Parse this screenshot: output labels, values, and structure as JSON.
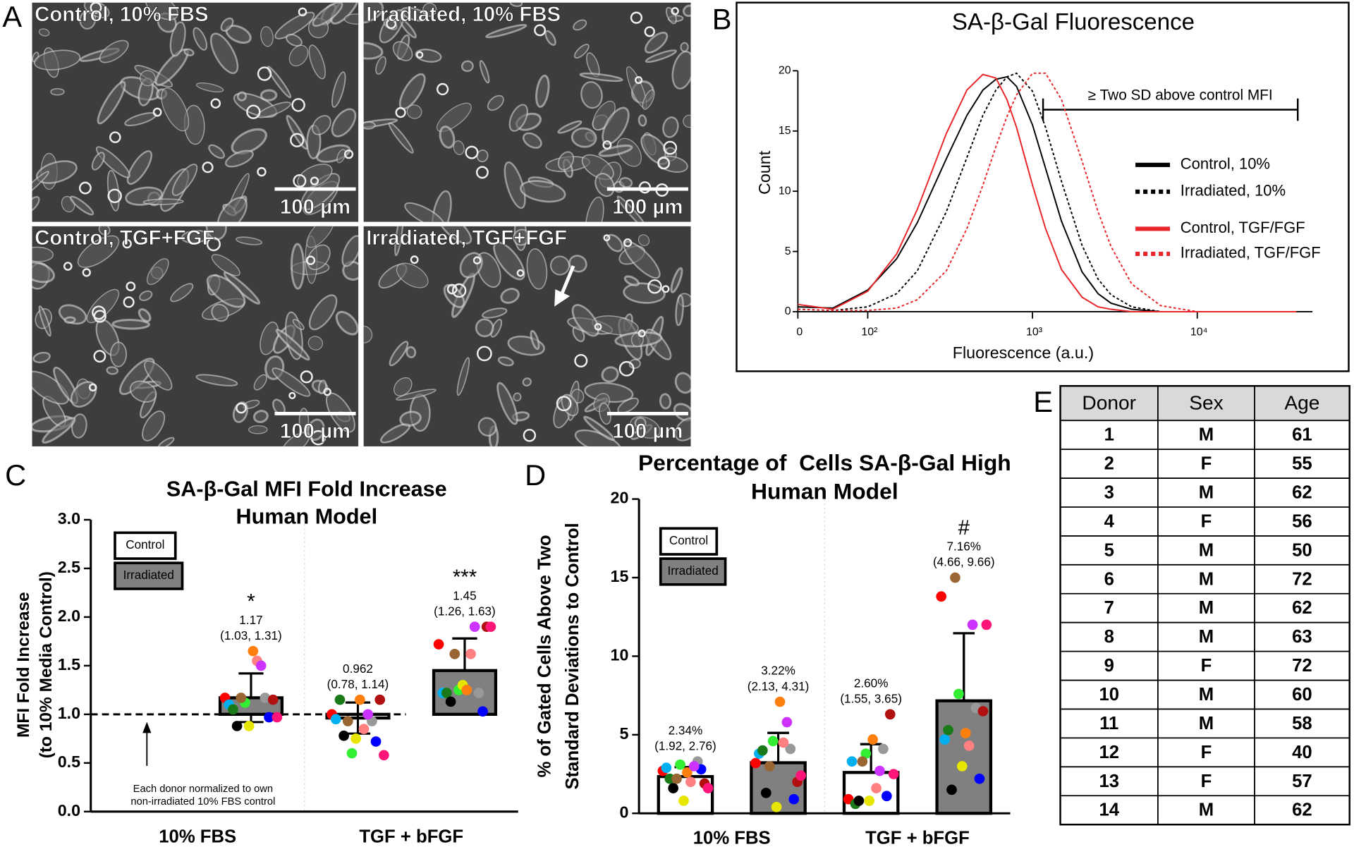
{
  "panel_labels": [
    "A",
    "B",
    "C",
    "D",
    "E"
  ],
  "micrographs": [
    {
      "label": "Control, 10% FBS",
      "scale_bar": "100 µm"
    },
    {
      "label": "Irradiated, 10% FBS",
      "scale_bar": "100 µm"
    },
    {
      "label": "Control, TGF+FGF",
      "scale_bar": "100 µm"
    },
    {
      "label": "Irradiated, TGF+FGF",
      "scale_bar": "100 µm"
    }
  ],
  "chart_data": [
    {
      "type": "line",
      "title": "SA-β-Gal Fluorescence",
      "xlabel": "Fluorescence (a.u.)",
      "ylabel": "Count",
      "xscale": "symlog",
      "linthresh": 100,
      "x": [
        0,
        50,
        100,
        150,
        200,
        300,
        400,
        500,
        600,
        700,
        800,
        1000,
        1200,
        1500,
        2000,
        2500,
        3000,
        4000,
        6000,
        10000,
        40000
      ],
      "xlim": [
        0,
        50000
      ],
      "xticks": [
        {
          "value": 0,
          "label": "0"
        },
        {
          "value": 100,
          "label": "10²"
        },
        {
          "value": 1000,
          "label": "10³"
        },
        {
          "value": 10000,
          "label": "10⁴"
        }
      ],
      "ylim": [
        0,
        20
      ],
      "yticks": [
        0,
        5,
        10,
        15,
        20
      ],
      "annotation": "≥ Two SD above control MFI",
      "series": [
        {
          "name": "Control, 10%",
          "color": "#000000",
          "linestyle": "solid",
          "values": [
            0.4,
            0.3,
            1.8,
            4.4,
            7.4,
            12.7,
            16.3,
            18.4,
            19.3,
            19.5,
            18.7,
            15.5,
            11.9,
            7.5,
            3.3,
            1.5,
            0.7,
            0.2,
            0,
            0,
            0
          ]
        },
        {
          "name": "Irradiated, 10%",
          "color": "#000000",
          "linestyle": "dotted",
          "values": [
            0.2,
            0.1,
            0.4,
            1.5,
            3.4,
            8.3,
            12.8,
            16.3,
            18.4,
            19.5,
            19.8,
            18.3,
            15.3,
            10.8,
            5.5,
            2.7,
            1.4,
            0.4,
            0,
            0,
            0
          ]
        },
        {
          "name": "Control, TGF/FGF",
          "color": "#e8262a",
          "linestyle": "solid",
          "values": [
            0.6,
            0.2,
            1.7,
            4.8,
            8.5,
            14.8,
            18.4,
            19.7,
            19.4,
            17.6,
            15.3,
            10.5,
            6.9,
            3.5,
            1.2,
            0.4,
            0.2,
            0,
            0,
            0,
            0
          ]
        },
        {
          "name": "Irradiated, TGF/FGF",
          "color": "#e8262a",
          "linestyle": "dotted",
          "values": [
            0.2,
            0.1,
            0.1,
            0.3,
            1.0,
            3.4,
            6.9,
            10.5,
            13.7,
            16.2,
            18.0,
            19.8,
            19.8,
            17.6,
            12.5,
            8.3,
            5.4,
            2.3,
            0.5,
            0,
            0
          ]
        }
      ]
    },
    {
      "type": "bar",
      "title": [
        "SA-β-Gal MFI Fold Increase",
        "Human Model"
      ],
      "ylabel": [
        "MFI Fold Increase",
        "(to 10% Media Control)"
      ],
      "categories": [
        "10% FBS",
        "TGF + bFGF"
      ],
      "ylim": [
        0,
        3
      ],
      "yticks": [
        {
          "value": 0,
          "label": "0.0"
        },
        {
          "value": 0.5,
          "label": "0.5"
        },
        {
          "value": 1,
          "label": "1.0"
        },
        {
          "value": 1.5,
          "label": "1.5"
        },
        {
          "value": 2,
          "label": "2.0"
        },
        {
          "value": 2.5,
          "label": "2.5"
        },
        {
          "value": 3,
          "label": "3.0"
        }
      ],
      "reference_line": 1,
      "note": [
        "Each donor normalized to own",
        "non-irradiated 10% FBS control"
      ],
      "series": [
        {
          "name": "Control",
          "color": "#ffffff",
          "values": [
            null,
            0.962
          ],
          "errors": [
            null,
            0.16
          ],
          "ci_labels": [
            null,
            "(0.78, 1.14)"
          ],
          "significance": [
            null,
            null
          ],
          "points": [
            null,
            [
              1.0,
              0.6,
              0.93,
              0.95,
              0.75,
              0.72,
              1.15,
              1.15,
              1.15,
              0.78,
              0.85,
              0.58,
              0.93,
              1.0
            ]
          ]
        },
        {
          "name": "Irradiated",
          "color": "#808080",
          "values": [
            1.17,
            1.45
          ],
          "errors": [
            0.25,
            0.33
          ],
          "ci_labels": [
            "(1.03, 1.31)",
            "(1.26, 1.63)"
          ],
          "significance": [
            "*",
            "***"
          ],
          "points": [
            [
              1.17,
              1.12,
              1.17,
              1.1,
              0.88,
              0.97,
              1.05,
              1.65,
              1.15,
              0.88,
              1.55,
              0.97,
              1.17,
              1.5
            ],
            [
              1.72,
              1.25,
              1.22,
              1.22,
              1.3,
              1.03,
              1.22,
              1.25,
              1.9,
              1.13,
              1.62,
              1.9,
              1.62,
              1.9
            ]
          ]
        }
      ]
    },
    {
      "type": "bar",
      "title": [
        "Percentage of  Cells SA-β-Gal High",
        "Human Model"
      ],
      "ylabel": [
        "% of Gated Cells Above Two",
        "Standard Deviations to Control"
      ],
      "categories": [
        "10% FBS",
        "TGF + bFGF"
      ],
      "ylim": [
        0,
        20
      ],
      "yticks": [
        0,
        5,
        10,
        15,
        20
      ],
      "series": [
        {
          "name": "Control",
          "color": "#ffffff",
          "values": [
            2.34,
            2.6
          ],
          "value_labels": [
            "2.34%",
            "2.60%"
          ],
          "errors": [
            0.6,
            1.8
          ],
          "ci_labels": [
            "(1.92, 2.76)",
            "(1.55, 3.65)"
          ],
          "significance": [
            null,
            null
          ],
          "points": [
            [
              2.7,
              3.1,
              3.3,
              2.9,
              0.8,
              2.8,
              2.2,
              2.6,
              1.9,
              1.6,
              2.0,
              1.6,
              2.2,
              3.0
            ],
            [
              0.9,
              3.8,
              4.1,
              3.3,
              0.8,
              1.1,
              0.6,
              4.7,
              6.3,
              0.8,
              1.6,
              2.5,
              3.3,
              2.7
            ]
          ]
        },
        {
          "name": "Irradiated",
          "color": "#808080",
          "values": [
            3.22,
            7.16
          ],
          "value_labels": [
            "3.22%",
            "7.16%"
          ],
          "errors": [
            1.9,
            4.3
          ],
          "ci_labels": [
            "(2.13, 4.31)",
            "(4.66, 9.66)"
          ],
          "significance": [
            null,
            "#"
          ],
          "points": [
            [
              3.2,
              4.6,
              4.1,
              3.8,
              0.4,
              0.9,
              4.0,
              7.1,
              2.0,
              1.3,
              4.5,
              2.4,
              3.0,
              5.8
            ],
            [
              13.8,
              7.6,
              6.7,
              4.7,
              3.0,
              2.2,
              5.3,
              5.1,
              6.5,
              1.5,
              4.3,
              12.0,
              15.0,
              12.0
            ]
          ]
        }
      ]
    }
  ],
  "table": {
    "header": [
      "Donor",
      "Sex",
      "Age"
    ],
    "rows": [
      [
        1,
        "M",
        61
      ],
      [
        2,
        "F",
        55
      ],
      [
        3,
        "M",
        62
      ],
      [
        4,
        "F",
        56
      ],
      [
        5,
        "M",
        50
      ],
      [
        6,
        "M",
        72
      ],
      [
        7,
        "M",
        62
      ],
      [
        8,
        "M",
        63
      ],
      [
        9,
        "F",
        72
      ],
      [
        10,
        "M",
        60
      ],
      [
        11,
        "M",
        58
      ],
      [
        12,
        "F",
        40
      ],
      [
        13,
        "F",
        57
      ],
      [
        14,
        "M",
        62
      ]
    ],
    "row_colors": [
      "#ff0000",
      "#33ee33",
      "#999999",
      "#00b0f0",
      "#e6e600",
      "#0000ff",
      "#1a7a1a",
      "#ff7f0e",
      "#b01010",
      "#000000",
      "#ff8080",
      "#ff1478",
      "#996633",
      "#cc33ff"
    ]
  }
}
